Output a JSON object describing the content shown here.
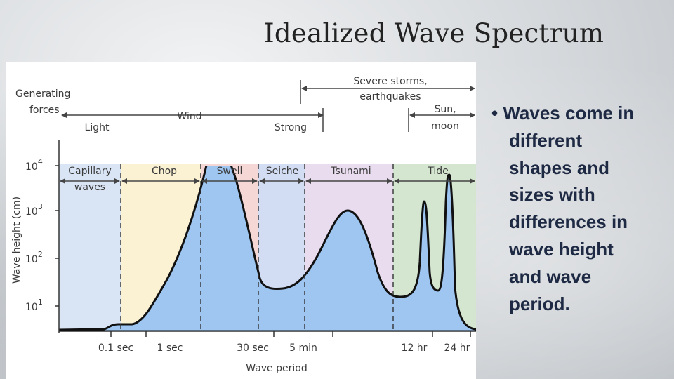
{
  "slide": {
    "title": "Idealized Wave Spectrum",
    "bullet_marker": "•",
    "bullet_lines": [
      "Waves come in",
      "different",
      "shapes and",
      "sizes with",
      "differences in",
      "wave height",
      "and wave",
      "period."
    ]
  },
  "diagram": {
    "generating_forces_label": [
      "Generating",
      "forces"
    ],
    "forces": {
      "light": "Light",
      "wind": "Wind",
      "strong": "Strong",
      "severe": [
        "Severe storms,",
        "earthquakes"
      ],
      "sun_moon": [
        "Sun,",
        "moon"
      ]
    },
    "wave_types": {
      "capillary": [
        "Capillary",
        "waves"
      ],
      "chop": "Chop",
      "swell": "Swell",
      "seiche": "Seiche",
      "tsunami": "Tsunami",
      "tide": "Tide"
    },
    "y_axis_label": "Wave height (cm)",
    "y_ticks": [
      {
        "base": "10",
        "exp": "4"
      },
      {
        "base": "10",
        "exp": "3"
      },
      {
        "base": "10",
        "exp": "2"
      },
      {
        "base": "10",
        "exp": "1"
      }
    ],
    "x_ticks": [
      "0.1 sec",
      "1 sec",
      "30 sec",
      "5 min",
      "12 hr",
      "24 hr"
    ],
    "x_axis_label": "Wave period",
    "colors": {
      "capillary": "#d9e4f5",
      "chop": "#fbf2d4",
      "swell": "#f5d7d6",
      "seiche": "#d2dcf2",
      "tsunami": "#e8dcee",
      "tide": "#d4e6cf",
      "curve_fill": "#9ec6f1",
      "curve_stroke": "#111111"
    }
  }
}
